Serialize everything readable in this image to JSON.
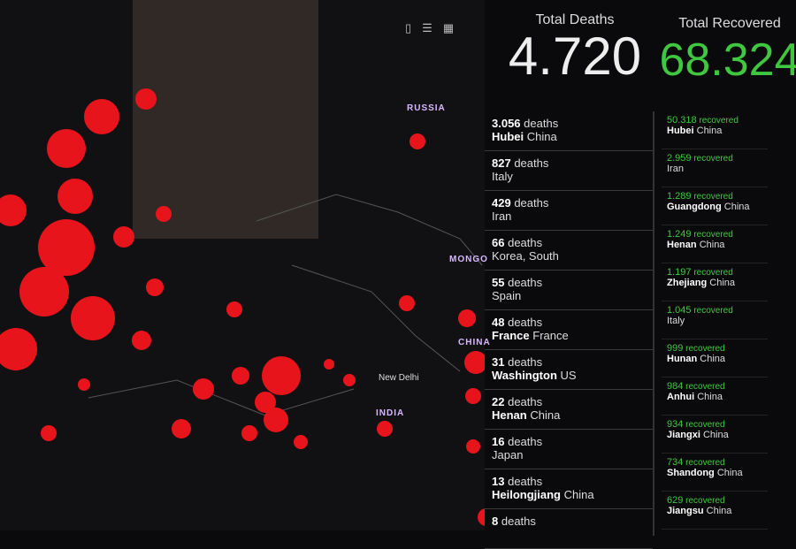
{
  "map": {
    "labels": [
      "RUSSIA",
      "MONGO",
      "CHINA",
      "INDIA",
      "New Delhi"
    ],
    "dot_color": "#e8141c"
  },
  "toolbar": {
    "icons": [
      "bookmark-icon",
      "list-icon",
      "qr-icon"
    ]
  },
  "deaths": {
    "title": "Total Deaths",
    "value": "4.720",
    "unit": "deaths",
    "items": [
      {
        "count": "3.056",
        "region": "Hubei",
        "country": "China"
      },
      {
        "count": "827",
        "region": "",
        "country": "Italy"
      },
      {
        "count": "429",
        "region": "",
        "country": "Iran"
      },
      {
        "count": "66",
        "region": "",
        "country": "Korea, South"
      },
      {
        "count": "55",
        "region": "",
        "country": "Spain"
      },
      {
        "count": "48",
        "region": "France",
        "country": "France"
      },
      {
        "count": "31",
        "region": "Washington",
        "country": "US"
      },
      {
        "count": "22",
        "region": "Henan",
        "country": "China"
      },
      {
        "count": "16",
        "region": "",
        "country": "Japan"
      },
      {
        "count": "13",
        "region": "Heilongjiang",
        "country": "China"
      },
      {
        "count": "8",
        "region": "",
        "country": ""
      }
    ]
  },
  "recovered": {
    "title": "Total Recovered",
    "value": "68.324",
    "unit": "recovered",
    "color": "#3fc83f",
    "items": [
      {
        "count": "50.318",
        "region": "Hubei",
        "country": "China"
      },
      {
        "count": "2.959",
        "region": "",
        "country": "Iran"
      },
      {
        "count": "1.289",
        "region": "Guangdong",
        "country": "China"
      },
      {
        "count": "1.249",
        "region": "Henan",
        "country": "China"
      },
      {
        "count": "1.197",
        "region": "Zhejiang",
        "country": "China"
      },
      {
        "count": "1.045",
        "region": "",
        "country": "Italy"
      },
      {
        "count": "999",
        "region": "Hunan",
        "country": "China"
      },
      {
        "count": "984",
        "region": "Anhui",
        "country": "China"
      },
      {
        "count": "934",
        "region": "Jiangxi",
        "country": "China"
      },
      {
        "count": "734",
        "region": "Shandong",
        "country": "China"
      },
      {
        "count": "629",
        "region": "Jiangsu",
        "country": "China"
      }
    ]
  }
}
